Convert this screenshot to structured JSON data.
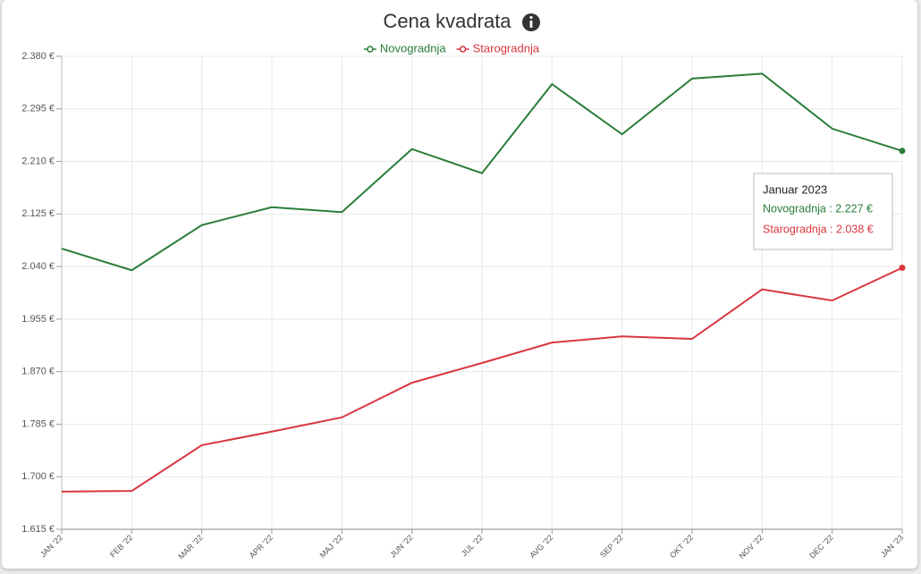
{
  "chart_data": {
    "type": "line",
    "title": "Cena kvadrata",
    "categories": [
      "JAN '22",
      "FEB '22",
      "MAR '22",
      "APR '22",
      "MAJ '22",
      "JUN '22",
      "JUL '22",
      "AVG '22",
      "SEP '22",
      "OKT '22",
      "NOV '22",
      "DEC '22",
      "JAN '23"
    ],
    "series": [
      {
        "name": "Novogradnja",
        "color": "#2a7d3a",
        "values": [
          2069,
          2034,
          2107,
          2136,
          2128,
          2230,
          2191,
          2335,
          2254,
          2344,
          2352,
          2263,
          2227
        ]
      },
      {
        "name": "Starogradnja",
        "color": "#d9363e",
        "values": [
          1676,
          1677,
          1751,
          1773,
          1796,
          1852,
          1884,
          1917,
          1927,
          1923,
          2003,
          1985,
          2038
        ]
      }
    ],
    "ylim": [
      1615,
      2380
    ],
    "yticks": [
      {
        "value": 1615,
        "label": "1.615 €"
      },
      {
        "value": 1700,
        "label": "1.700 €"
      },
      {
        "value": 1785,
        "label": "1.785 €"
      },
      {
        "value": 1870,
        "label": "1.870 €"
      },
      {
        "value": 1955,
        "label": "1.955 €"
      },
      {
        "value": 2040,
        "label": "2.040 €"
      },
      {
        "value": 2125,
        "label": "2.125 €"
      },
      {
        "value": 2210,
        "label": "2.210 €"
      },
      {
        "value": 2295,
        "label": "2.295 €"
      },
      {
        "value": 2380,
        "label": "2.380 €"
      }
    ],
    "grid": true,
    "legend": "top",
    "tooltip": {
      "title": "Januar 2023",
      "lines": [
        "Novogradnja : 2.227 €",
        "Starogradnja : 2.038 €"
      ]
    }
  }
}
